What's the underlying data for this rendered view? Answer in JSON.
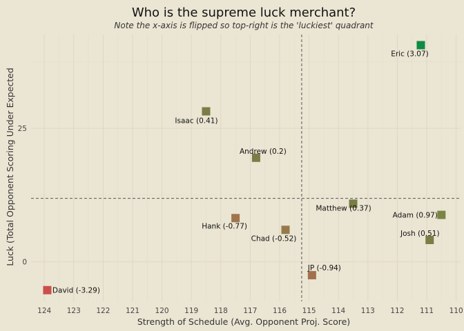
{
  "chart_data": {
    "type": "scatter",
    "title": "Who is the supreme luck merchant?",
    "subtitle": "Note the x-axis is flipped so top-right is the 'luckiest' quadrant",
    "xlabel": "Strength of Schedule (Avg. Opponent Proj. Score)",
    "ylabel": "Luck (Total Opponent Scoring Under Expected",
    "x_reversed": true,
    "xlim": [
      124.45,
      109.85
    ],
    "ylim": [
      -7.4,
      42.6
    ],
    "x_ticks": [
      124,
      123,
      122,
      121,
      120,
      119,
      118,
      117,
      116,
      115,
      114,
      113,
      112,
      111,
      110
    ],
    "y_ticks": [
      0,
      25
    ],
    "ref_x": 115.25,
    "ref_y": 11.9,
    "grid": true,
    "points": [
      {
        "label": "Eric (3.07)",
        "x": 111.2,
        "y": 40.6,
        "color": "#0f8b43"
      },
      {
        "label": "Isaac (0.41)",
        "x": 118.5,
        "y": 28.2,
        "color": "#7a7d45"
      },
      {
        "label": "Andrew (0.2)",
        "x": 116.8,
        "y": 19.5,
        "color": "#7a7d45"
      },
      {
        "label": "Matthew (0.37)",
        "x": 113.5,
        "y": 10.9,
        "color": "#7a7d45"
      },
      {
        "label": "Adam (0.97)",
        "x": 110.5,
        "y": 8.8,
        "color": "#7a8445"
      },
      {
        "label": "Hank (-0.77)",
        "x": 117.5,
        "y": 8.2,
        "color": "#a0754d"
      },
      {
        "label": "Chad (-0.52)",
        "x": 115.8,
        "y": 6.0,
        "color": "#957a4c"
      },
      {
        "label": "Josh (0.51)",
        "x": 110.9,
        "y": 4.1,
        "color": "#7a7d45"
      },
      {
        "label": "JP (-0.94)",
        "x": 114.9,
        "y": -2.5,
        "color": "#a3704e"
      },
      {
        "label": "David (-3.29)",
        "x": 123.9,
        "y": -5.3,
        "color": "#cc4e4a"
      }
    ]
  }
}
